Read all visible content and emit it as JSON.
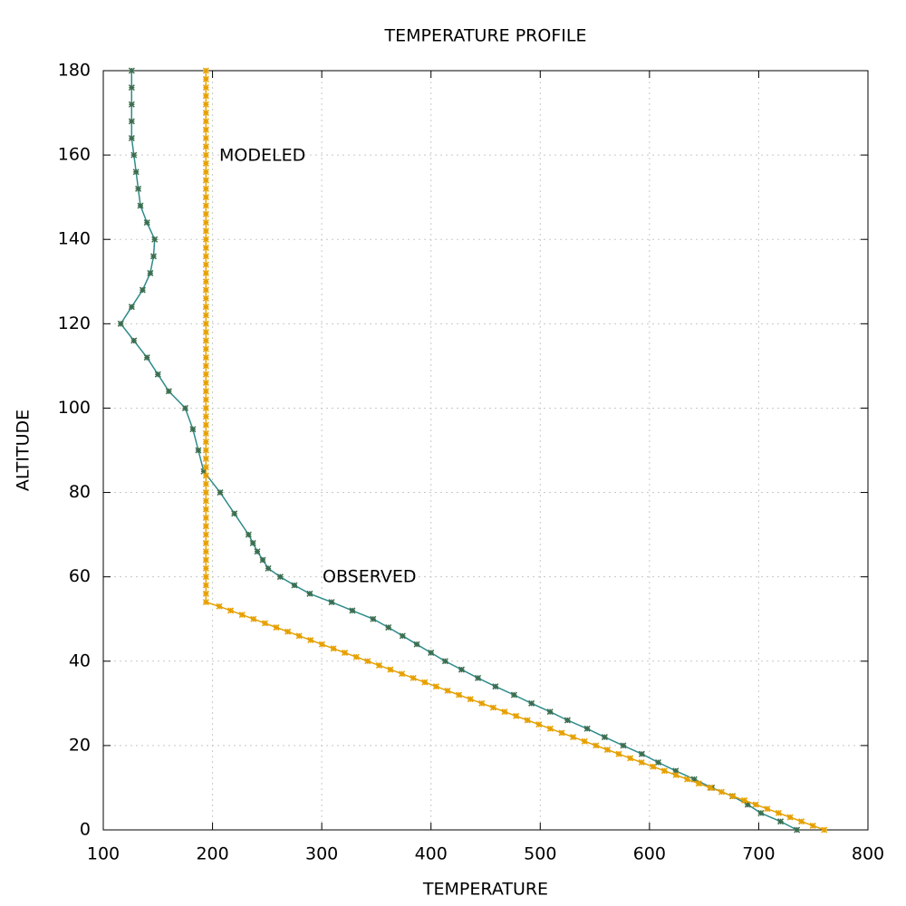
{
  "chart_data": {
    "type": "line",
    "title": "TEMPERATURE PROFILE",
    "x_label": "TEMPERATURE",
    "y_label": "ALTITUDE",
    "xlim": [
      100,
      800
    ],
    "xticks": [
      100,
      200,
      300,
      400,
      500,
      600,
      700,
      800
    ],
    "ylim": [
      0,
      180
    ],
    "yticks": [
      0,
      20,
      40,
      60,
      80,
      100,
      120,
      140,
      160,
      180
    ],
    "grid": true,
    "series": [
      {
        "name": "OBSERVED",
        "color": "#2e8b8b",
        "marker_color": "#3c6e50",
        "x": [
          735,
          720,
          702,
          690,
          676,
          657,
          641,
          624,
          608,
          593,
          576,
          559,
          543,
          525,
          509,
          492,
          476,
          459,
          443,
          428,
          413,
          400,
          387,
          374,
          361,
          347,
          328,
          309,
          289,
          275,
          262,
          251,
          246,
          241,
          237,
          233,
          220,
          207,
          192,
          187,
          182,
          175,
          160,
          150,
          140,
          128,
          116,
          126,
          136,
          143,
          146,
          147,
          140,
          134,
          132,
          130,
          128,
          126,
          126,
          126,
          126,
          126
        ],
        "values": [
          0,
          2,
          4,
          6,
          8,
          10,
          12,
          14,
          16,
          18,
          20,
          22,
          24,
          26,
          28,
          30,
          32,
          34,
          36,
          38,
          40,
          42,
          44,
          46,
          48,
          50,
          52,
          54,
          56,
          58,
          60,
          62,
          64,
          66,
          68,
          70,
          75,
          80,
          85,
          90,
          95,
          100,
          104,
          108,
          112,
          116,
          120,
          124,
          128,
          132,
          136,
          140,
          144,
          148,
          152,
          156,
          160,
          164,
          168,
          172,
          176,
          180
        ]
      },
      {
        "name": "MODELED",
        "color": "#e6a000",
        "marker_color": "#e6a000",
        "x": [
          760,
          749.6,
          739.1,
          728.7,
          718.2,
          707.8,
          697.3,
          686.9,
          676.4,
          666.0,
          655.5,
          645.1,
          634.6,
          624.2,
          613.7,
          603.3,
          592.8,
          582.4,
          571.9,
          561.5,
          551,
          540.6,
          530.1,
          519.7,
          509.2,
          498.8,
          488.3,
          477.9,
          467.4,
          457.0,
          446.5,
          436.1,
          425.6,
          415.2,
          404.7,
          394.3,
          383.8,
          373.4,
          362.9,
          352.5,
          342,
          331.6,
          321.1,
          310.7,
          300.2,
          289.8,
          279.3,
          268.9,
          258.4,
          248.0,
          237.5,
          227.1,
          216.6,
          206.2,
          194,
          194,
          194,
          194,
          194,
          194,
          194,
          194,
          194,
          194,
          194,
          194,
          194,
          194,
          194,
          194,
          194,
          194,
          194,
          194,
          194,
          194,
          194,
          194,
          194,
          194,
          194,
          194,
          194,
          194,
          194,
          194,
          194,
          194,
          194,
          194,
          194,
          194,
          194,
          194,
          194,
          194,
          194,
          194,
          194,
          194,
          194,
          194,
          194,
          194,
          194,
          194,
          194,
          194,
          194,
          194,
          194,
          194,
          194,
          194,
          194,
          194,
          194,
          194
        ],
        "values": [
          0,
          1,
          2,
          3,
          4,
          5,
          6,
          7,
          8,
          9,
          10,
          11,
          12,
          13,
          14,
          15,
          16,
          17,
          18,
          19,
          20,
          21,
          22,
          23,
          24,
          25,
          26,
          27,
          28,
          29,
          30,
          31,
          32,
          33,
          34,
          35,
          36,
          37,
          38,
          39,
          40,
          41,
          42,
          43,
          44,
          45,
          46,
          47,
          48,
          49,
          50,
          51,
          52,
          53,
          54,
          56,
          58,
          60,
          62,
          64,
          66,
          68,
          70,
          72,
          74,
          76,
          78,
          80,
          82,
          84,
          86,
          88,
          90,
          92,
          94,
          96,
          98,
          100,
          102,
          104,
          106,
          108,
          110,
          112,
          114,
          116,
          118,
          120,
          122,
          124,
          126,
          128,
          130,
          132,
          134,
          136,
          138,
          140,
          142,
          144,
          146,
          148,
          150,
          152,
          154,
          156,
          158,
          160,
          162,
          164,
          166,
          168,
          170,
          172,
          174,
          176,
          178,
          180
        ]
      }
    ]
  }
}
